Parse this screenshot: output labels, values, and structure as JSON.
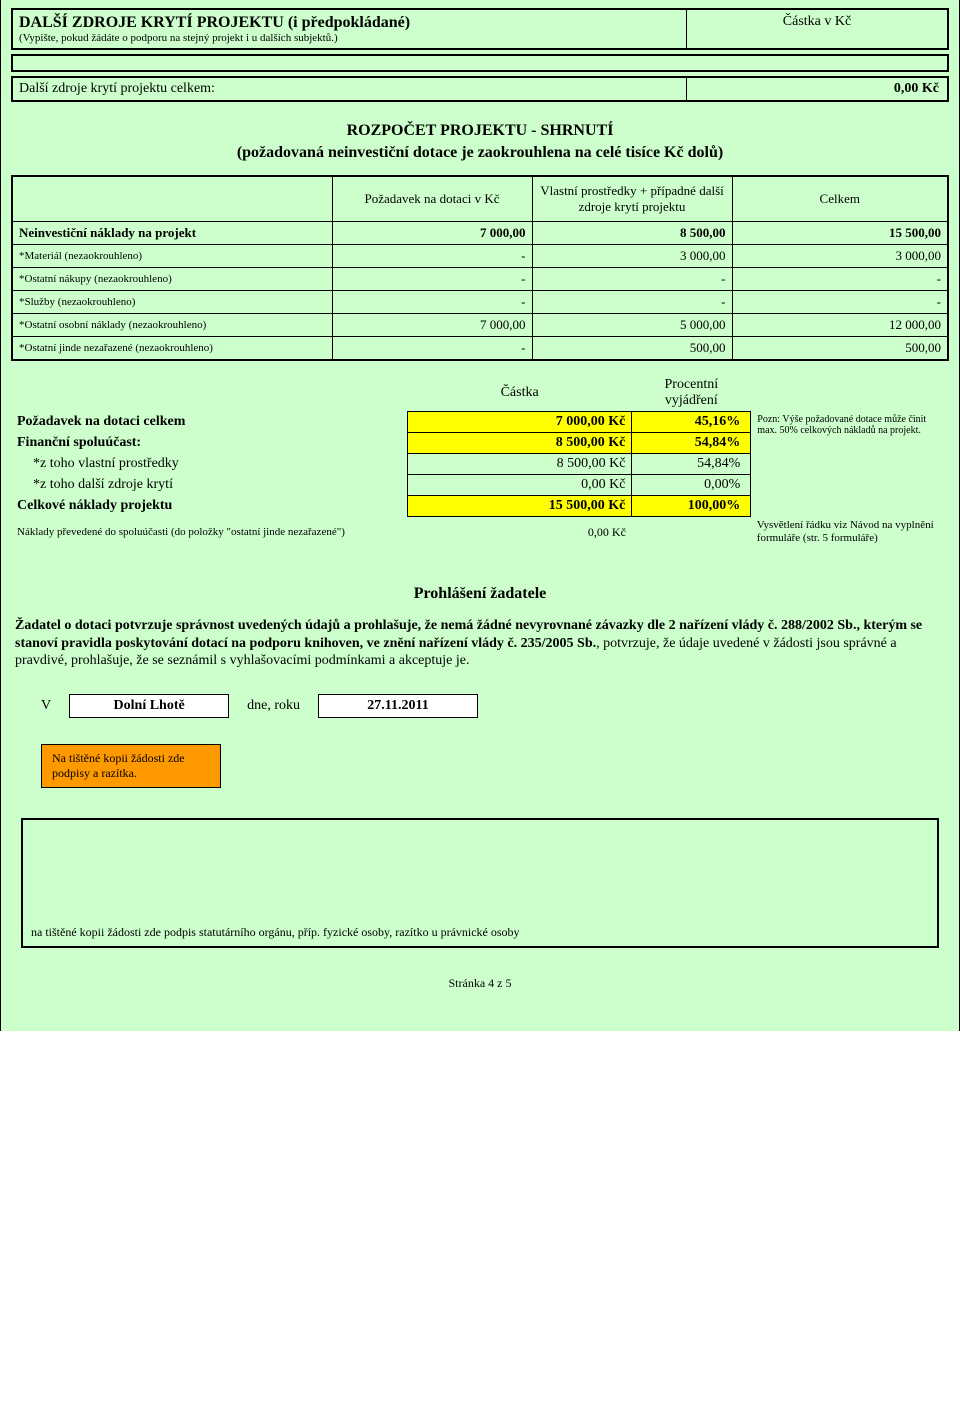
{
  "section1": {
    "title": "DALŠÍ ZDROJE KRYTÍ PROJEKTU (i předpokládané)",
    "subtitle": "(Vypište, pokud žádáte o podporu na stejný projekt i u dalších subjektů.)",
    "amount_label": "Částka v Kč"
  },
  "total_sources": {
    "label": "Další zdroje krytí projektu celkem:",
    "value": "0,00 Kč"
  },
  "budget_heading_l1": "ROZPOČET PROJEKTU - SHRNUTÍ",
  "budget_heading_l2": "(požadovaná neinvestiční dotace je zaokrouhlena na celé tisíce Kč dolů)",
  "budget_table": {
    "headers": {
      "blank": "",
      "col1": "Požadavek na dotaci v Kč",
      "col2": "Vlastní prostředky + případné další zdroje krytí projektu",
      "col3": "Celkem"
    },
    "rows": [
      {
        "label": "Neinvestiční náklady na projekt",
        "bold": true,
        "a": "7 000,00",
        "b": "8 500,00",
        "c": "15 500,00"
      },
      {
        "label": "*Materiál (nezaokrouhleno)",
        "bold": false,
        "a": "-",
        "b": "3 000,00",
        "c": "3 000,00"
      },
      {
        "label": "*Ostatní nákupy (nezaokrouhleno)",
        "bold": false,
        "a": "-",
        "b": "-",
        "c": "-"
      },
      {
        "label": "*Služby (nezaokrouhleno)",
        "bold": false,
        "a": "-",
        "b": "-",
        "c": "-"
      },
      {
        "label": "*Ostatní osobní náklady (nezaokrouhleno)",
        "bold": false,
        "a": "7 000,00",
        "b": "5 000,00",
        "c": "12 000,00"
      },
      {
        "label": "*Ostatní jinde nezařazené (nezaokrouhleno)",
        "bold": false,
        "a": "-",
        "b": "500,00",
        "c": "500,00"
      }
    ]
  },
  "summary": {
    "col_amount": "Částka",
    "col_pct": "Procentní vyjádření",
    "rows": [
      {
        "label": "Požadavek na dotaci celkem",
        "bold": true,
        "indent": false,
        "hl": true,
        "amount": "7 000,00 Kč",
        "pct": "45,16%"
      },
      {
        "label": "Finanční spoluúčast:",
        "bold": true,
        "indent": false,
        "hl": true,
        "amount": "8 500,00 Kč",
        "pct": "54,84%"
      },
      {
        "label": "*z toho vlastní prostředky",
        "bold": false,
        "indent": true,
        "hl": false,
        "amount": "8 500,00 Kč",
        "pct": "54,84%"
      },
      {
        "label": "*z toho další zdroje krytí",
        "bold": false,
        "indent": true,
        "hl": false,
        "amount": "0,00 Kč",
        "pct": "0,00%"
      },
      {
        "label": "Celkové náklady projektu",
        "bold": true,
        "indent": false,
        "hl": true,
        "amount": "15 500,00 Kč",
        "pct": "100,00%"
      }
    ],
    "note": "Pozn: Výše požadované dotace může činit max. 50% celkových nákladů na projekt.",
    "foot_label": "Náklady převedené do spoluúčasti (do položky \"ostatní jinde nezařazené\")",
    "foot_amount": "0,00 Kč",
    "foot_explain": "Vysvětlení řádku viz Návod na vyplnění formuláře (str. 5 formuláře)"
  },
  "declaration": {
    "heading": "Prohlášení žadatele",
    "text_bold": "Žadatel o dotaci potvrzuje správnost uvedených údajů a prohlašuje, že nemá žádné nevyrovnané závazky dle 2 nařízení vlády č. 288/2002 Sb., kterým se stanoví pravidla poskytování dotací na podporu knihoven, ve znění nařízení vlády č. 235/2005 Sb.",
    "text_rest": ", potvrzuje, že údaje uvedené v žádosti jsou správné a pravdivé, prohlašuje, že se seznámil s vyhlašovacími podmínkami a akceptuje je."
  },
  "sign": {
    "v": "V",
    "place": "Dolní Lhotě",
    "dne": "dne, roku",
    "date": "27.11.2011"
  },
  "orange_note": "Na tištěné kopii žádosti zde podpisy a razítka.",
  "sign_caption": "na tištěné kopii žádosti zde podpis statutárního orgánu, příp. fyzické osoby, razítko u právnické osoby",
  "page_number": "Stránka 4 z 5",
  "colors": {
    "page_bg": "#ccffcc",
    "highlight": "#ffff00",
    "orange": "#ff9900",
    "border": "#000000",
    "white": "#ffffff"
  }
}
